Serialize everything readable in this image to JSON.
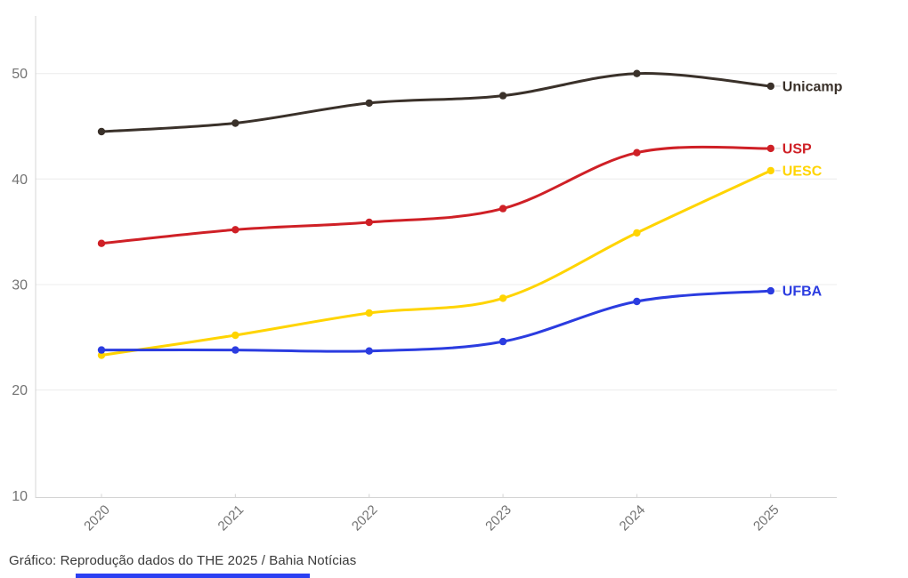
{
  "caption": "Gráfico: Reprodução dados do THE 2025 / Bahia Notícias",
  "chart_data": {
    "type": "line",
    "title": "",
    "xlabel": "",
    "ylabel": "",
    "x": [
      "2020",
      "2021",
      "2022",
      "2023",
      "2024",
      "2025"
    ],
    "series": [
      {
        "name": "Unicamp",
        "color": "#3a312a",
        "values": [
          44.5,
          45.3,
          47.2,
          47.9,
          50.0,
          48.8
        ]
      },
      {
        "name": "USP",
        "color": "#cf2026",
        "values": [
          33.9,
          35.2,
          35.9,
          37.2,
          42.5,
          42.9
        ]
      },
      {
        "name": "UESC",
        "color": "#ffd400",
        "values": [
          23.3,
          25.2,
          27.3,
          28.7,
          34.9,
          40.8
        ]
      },
      {
        "name": "UFBA",
        "color": "#2b3ce0",
        "values": [
          23.8,
          23.8,
          23.7,
          24.6,
          28.4,
          29.4
        ]
      }
    ],
    "ylim": [
      10,
      53
    ],
    "yticks": [
      10,
      20,
      30,
      40,
      50
    ],
    "grid": true,
    "legend_position": "line-end-labels"
  },
  "colors": {
    "grid": "#ececec",
    "axis": "#d4d4d4",
    "tick_label": "#737373",
    "caption": "#3a3a3a",
    "label_connector": "#c9c9c9",
    "loading_bar": "#2b3ff2"
  }
}
